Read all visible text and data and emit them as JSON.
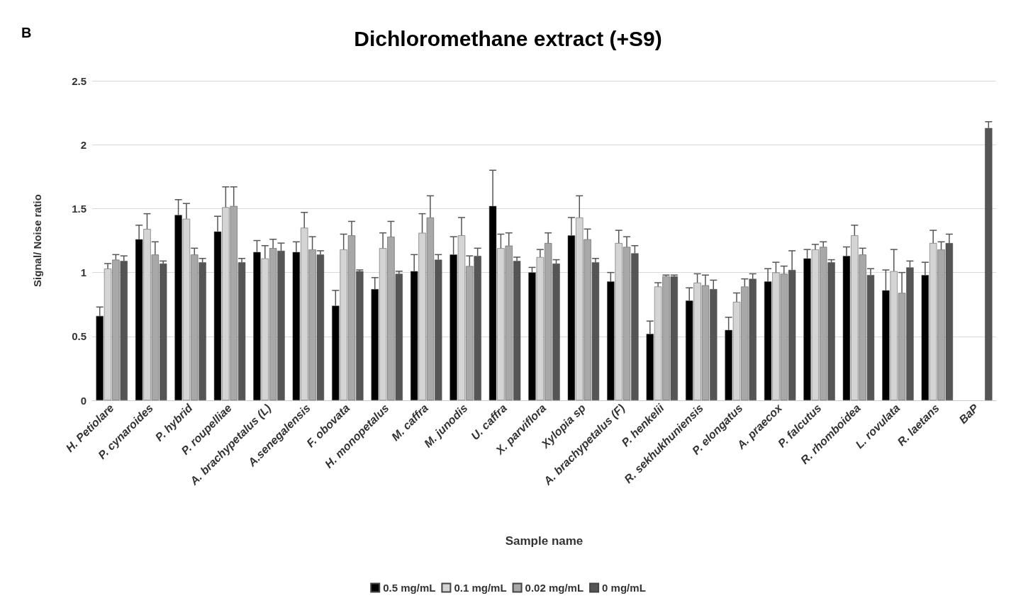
{
  "chart_data": {
    "type": "bar",
    "title": "Dichloromethane extract (+S9)",
    "xlabel": "Sample name",
    "ylabel": "Signal/ Noise ratio",
    "annotations": [
      "B"
    ],
    "categories": [
      "H. Petiolare",
      "P. cynaroides",
      "P. hybrid",
      "P. roupelliae",
      "A. brachypetalus (L)",
      "A.senegalensis",
      "F. obovata",
      "H. monopetalus",
      "M. caffra",
      "M. junodis",
      "U. caffra",
      "X. parviflora",
      "Xylopia sp",
      "A. brachypetalus (F)",
      "P. henkelii",
      "R. sekhukhuniensis",
      "P. elongatus",
      "A. praecox",
      "P. falcutus",
      "R. rhomboidea",
      "L. rovulata",
      "R. laetans",
      "BaP"
    ],
    "series": [
      {
        "name": "0.5 mg/mL",
        "color": "#000000",
        "values": [
          0.66,
          1.26,
          1.45,
          1.32,
          1.16,
          1.16,
          0.74,
          0.87,
          1.01,
          1.14,
          1.52,
          1.0,
          1.29,
          0.93,
          0.52,
          0.78,
          0.55,
          0.93,
          1.11,
          1.13,
          0.86,
          0.98,
          null
        ],
        "errors": [
          [
            0.66,
            0.73
          ],
          [
            1.26,
            1.37
          ],
          [
            1.45,
            1.57
          ],
          [
            1.32,
            1.44
          ],
          [
            1.16,
            1.25
          ],
          [
            1.16,
            1.24
          ],
          [
            0.74,
            0.86
          ],
          [
            0.87,
            0.96
          ],
          [
            1.01,
            1.14
          ],
          [
            1.14,
            1.28
          ],
          [
            1.52,
            1.8
          ],
          [
            1.0,
            1.04
          ],
          [
            1.29,
            1.43
          ],
          [
            0.93,
            1.0
          ],
          [
            0.52,
            0.62
          ],
          [
            0.78,
            0.88
          ],
          [
            0.55,
            0.65
          ],
          [
            0.93,
            1.03
          ],
          [
            1.11,
            1.18
          ],
          [
            1.13,
            1.2
          ],
          [
            0.86,
            1.02
          ],
          [
            0.98,
            1.08
          ],
          null
        ]
      },
      {
        "name": "0.1 mg/mL",
        "color": "#d4d4d4",
        "values": [
          1.03,
          1.34,
          1.42,
          1.51,
          1.11,
          1.35,
          1.18,
          1.19,
          1.31,
          1.29,
          1.19,
          1.12,
          1.43,
          1.23,
          0.89,
          0.92,
          0.77,
          1.0,
          1.18,
          1.29,
          1.01,
          1.23,
          null
        ],
        "errors": [
          [
            1.03,
            1.07
          ],
          [
            1.34,
            1.46
          ],
          [
            1.42,
            1.54
          ],
          [
            1.51,
            1.67
          ],
          [
            1.11,
            1.21
          ],
          [
            1.35,
            1.47
          ],
          [
            1.18,
            1.3
          ],
          [
            1.19,
            1.31
          ],
          [
            1.31,
            1.46
          ],
          [
            1.29,
            1.43
          ],
          [
            1.19,
            1.3
          ],
          [
            1.12,
            1.18
          ],
          [
            1.43,
            1.6
          ],
          [
            1.23,
            1.33
          ],
          [
            0.89,
            0.92
          ],
          [
            0.92,
            0.99
          ],
          [
            0.77,
            0.84
          ],
          [
            1.0,
            1.08
          ],
          [
            1.18,
            1.22
          ],
          [
            1.29,
            1.37
          ],
          [
            1.01,
            1.18
          ],
          [
            1.23,
            1.33
          ],
          null
        ]
      },
      {
        "name": "0.02 mg/mL",
        "color": "#a8a8a8",
        "values": [
          1.1,
          1.14,
          1.14,
          1.52,
          1.19,
          1.18,
          1.29,
          1.28,
          1.43,
          1.05,
          1.21,
          1.23,
          1.26,
          1.2,
          0.97,
          0.9,
          0.89,
          0.99,
          1.2,
          1.14,
          0.84,
          1.18,
          null
        ],
        "errors": [
          [
            1.1,
            1.14
          ],
          [
            1.14,
            1.24
          ],
          [
            1.14,
            1.19
          ],
          [
            1.52,
            1.67
          ],
          [
            1.19,
            1.26
          ],
          [
            1.18,
            1.28
          ],
          [
            1.29,
            1.4
          ],
          [
            1.28,
            1.4
          ],
          [
            1.43,
            1.6
          ],
          [
            1.05,
            1.13
          ],
          [
            1.21,
            1.31
          ],
          [
            1.23,
            1.31
          ],
          [
            1.26,
            1.34
          ],
          [
            1.2,
            1.28
          ],
          [
            0.97,
            0.98
          ],
          [
            0.9,
            0.98
          ],
          [
            0.89,
            0.95
          ],
          [
            0.99,
            1.05
          ],
          [
            1.2,
            1.24
          ],
          [
            1.14,
            1.19
          ],
          [
            0.84,
            1.0
          ],
          [
            1.18,
            1.24
          ],
          null
        ]
      },
      {
        "name": "0 mg/mL",
        "color": "#555555",
        "values": [
          1.09,
          1.07,
          1.08,
          1.08,
          1.17,
          1.14,
          1.01,
          0.99,
          1.1,
          1.13,
          1.09,
          1.07,
          1.08,
          1.15,
          0.97,
          0.87,
          0.95,
          1.02,
          1.08,
          0.98,
          1.04,
          1.23,
          2.13
        ],
        "errors": [
          [
            1.09,
            1.13
          ],
          [
            1.07,
            1.09
          ],
          [
            1.08,
            1.11
          ],
          [
            1.08,
            1.11
          ],
          [
            1.17,
            1.23
          ],
          [
            1.14,
            1.17
          ],
          [
            1.01,
            1.02
          ],
          [
            0.99,
            1.01
          ],
          [
            1.1,
            1.14
          ],
          [
            1.13,
            1.19
          ],
          [
            1.09,
            1.12
          ],
          [
            1.07,
            1.1
          ],
          [
            1.08,
            1.11
          ],
          [
            1.15,
            1.21
          ],
          [
            0.97,
            0.98
          ],
          [
            0.87,
            0.94
          ],
          [
            0.95,
            0.99
          ],
          [
            1.02,
            1.17
          ],
          [
            1.08,
            1.1
          ],
          [
            0.98,
            1.03
          ],
          [
            1.04,
            1.09
          ],
          [
            1.23,
            1.3
          ],
          [
            2.13,
            2.18
          ]
        ]
      }
    ],
    "ylim": [
      0,
      2.5
    ],
    "yticks": [
      0,
      0.5,
      1,
      1.5,
      2,
      2.5
    ],
    "grid": "y",
    "legend": "bottom"
  }
}
